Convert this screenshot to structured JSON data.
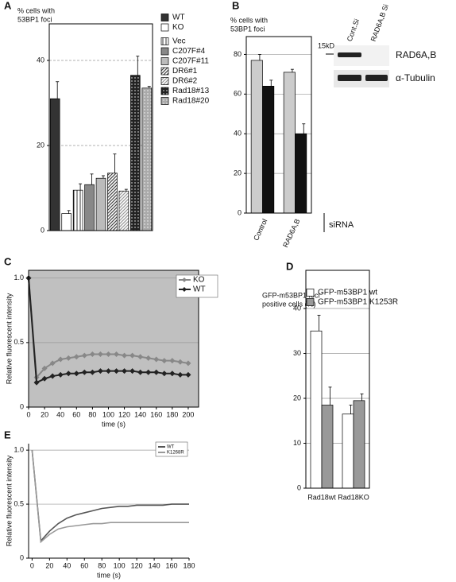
{
  "chart_data": [
    {
      "type": "bar",
      "panel": "A",
      "ylabel": [
        "% cells with",
        "53BP1 foci"
      ],
      "ylim": [
        0,
        48.6
      ],
      "yticks": [
        0,
        20,
        40
      ],
      "grid": "dashed",
      "series": [
        {
          "name": "WT",
          "color": "#333333",
          "values": [
            31
          ],
          "errors": [
            4
          ]
        },
        {
          "name": "KO",
          "color": "#ffffff",
          "values": [
            4
          ],
          "errors": [
            0.7
          ]
        },
        {
          "name": "Vec",
          "color": "#ffffff",
          "pattern": "vertical",
          "values": [
            9.5
          ],
          "errors": [
            1.5
          ]
        },
        {
          "name": "C207F#4",
          "color": "#888888",
          "values": [
            10.8
          ],
          "errors": [
            2.5
          ]
        },
        {
          "name": "C207F#11",
          "color": "#bbbbbb",
          "values": [
            12.3
          ],
          "errors": [
            0.6
          ]
        },
        {
          "name": "DR6#1",
          "color": "#444444",
          "pattern": "diagonal",
          "values": [
            13.5
          ],
          "errors": [
            4.5
          ]
        },
        {
          "name": "DR6#2",
          "color": "#999999",
          "pattern": "diagonal",
          "values": [
            9.3
          ],
          "errors": [
            0.4
          ]
        },
        {
          "name": "Rad18#13",
          "color": "#222222",
          "pattern": "dots",
          "values": [
            36.5
          ],
          "errors": [
            4.5
          ]
        },
        {
          "name": "Rad18#20",
          "color": "#aaaaaa",
          "pattern": "dots",
          "values": [
            33.5
          ],
          "errors": [
            0.4
          ]
        }
      ]
    },
    {
      "type": "bar",
      "panel": "B",
      "ylabel": [
        "% cells with",
        "53BP1 foci"
      ],
      "categories": [
        "Control",
        "RAD6A,B"
      ],
      "xlabel": "siRNA",
      "ylim": [
        0,
        89
      ],
      "yticks": [
        0,
        20,
        40,
        60,
        80
      ],
      "grid": "solid",
      "series": [
        {
          "color": "#cccccc",
          "values": [
            77,
            71
          ],
          "errors": [
            3,
            1.5
          ]
        },
        {
          "color": "#111111",
          "values": [
            64,
            40
          ],
          "errors": [
            3,
            5
          ]
        }
      ],
      "blot": {
        "lanes": [
          "Cont.Si",
          "RAD6A,B Si"
        ],
        "marker": "15kD",
        "bands": [
          "RAD6A,B",
          "α-Tubulin"
        ]
      }
    },
    {
      "type": "line",
      "panel": "C",
      "ylabel": [
        "Relative fluorescent intensity"
      ],
      "xlabel": "time (s)",
      "markers": "diamond",
      "background": "#c0c0c0",
      "grid": "solid",
      "x": [
        0,
        10,
        20,
        30,
        40,
        50,
        60,
        70,
        80,
        90,
        100,
        110,
        120,
        130,
        140,
        150,
        160,
        170,
        180,
        190,
        200
      ],
      "xlim": [
        0,
        213
      ],
      "xticks": [
        0,
        20,
        40,
        60,
        80,
        100,
        120,
        140,
        160,
        180,
        200
      ],
      "ylim": [
        0,
        1.06
      ],
      "yticks": [
        0,
        0.5,
        {
          "value": 1,
          "label": "1.0"
        }
      ],
      "series": [
        {
          "name": "KO",
          "color": "#888888",
          "values": [
            1.0,
            0.23,
            0.3,
            0.34,
            0.37,
            0.38,
            0.39,
            0.4,
            0.41,
            0.41,
            0.41,
            0.41,
            0.4,
            0.4,
            0.39,
            0.38,
            0.37,
            0.36,
            0.36,
            0.35,
            0.34
          ]
        },
        {
          "name": "WT",
          "color": "#222222",
          "values": [
            1.0,
            0.19,
            0.22,
            0.24,
            0.25,
            0.26,
            0.26,
            0.27,
            0.27,
            0.28,
            0.28,
            0.28,
            0.28,
            0.28,
            0.27,
            0.27,
            0.27,
            0.26,
            0.26,
            0.25,
            0.25
          ]
        }
      ]
    },
    {
      "type": "bar",
      "panel": "D",
      "ylabel": [
        "GFP-m53BP1 foci",
        "positive cells (%)"
      ],
      "categories": [
        "Rad18wt",
        "Rad18KO"
      ],
      "ylim": [
        0,
        48.5
      ],
      "yticks": [
        0,
        10,
        20,
        30,
        40
      ],
      "grid": "solid",
      "series": [
        {
          "name": "GFP-m53BP1 wt",
          "color": "#ffffff",
          "values": [
            35,
            16.5
          ],
          "errors": [
            3.5,
            2
          ]
        },
        {
          "name": "GFP-m53BP1 K1253R",
          "color": "#999999",
          "values": [
            18.5,
            19.5
          ],
          "errors": [
            4,
            1.5
          ]
        }
      ]
    },
    {
      "type": "line",
      "panel": "E",
      "ylabel": [
        "Relative fluorescent intensity"
      ],
      "xlabel": "time (s)",
      "grid": "solid",
      "x": [
        0,
        10,
        20,
        30,
        40,
        50,
        60,
        70,
        80,
        90,
        100,
        110,
        120,
        130,
        140,
        150,
        160,
        170,
        180
      ],
      "xlim": [
        -4,
        180
      ],
      "xticks": [
        0,
        20,
        40,
        60,
        80,
        100,
        120,
        140,
        160,
        180
      ],
      "ylim": [
        0,
        1.06
      ],
      "yticks": [
        0,
        0.5,
        {
          "value": 1,
          "label": "1.0"
        }
      ],
      "series": [
        {
          "name": "WT",
          "color": "#555555",
          "values": [
            1.0,
            0.16,
            0.25,
            0.32,
            0.37,
            0.4,
            0.42,
            0.44,
            0.46,
            0.47,
            0.48,
            0.48,
            0.49,
            0.49,
            0.49,
            0.49,
            0.5,
            0.5,
            0.5
          ]
        },
        {
          "name": "K1268R",
          "color": "#999999",
          "values": [
            1.0,
            0.15,
            0.22,
            0.27,
            0.29,
            0.3,
            0.31,
            0.32,
            0.32,
            0.33,
            0.33,
            0.33,
            0.33,
            0.33,
            0.33,
            0.33,
            0.33,
            0.33,
            0.33
          ]
        }
      ]
    }
  ]
}
